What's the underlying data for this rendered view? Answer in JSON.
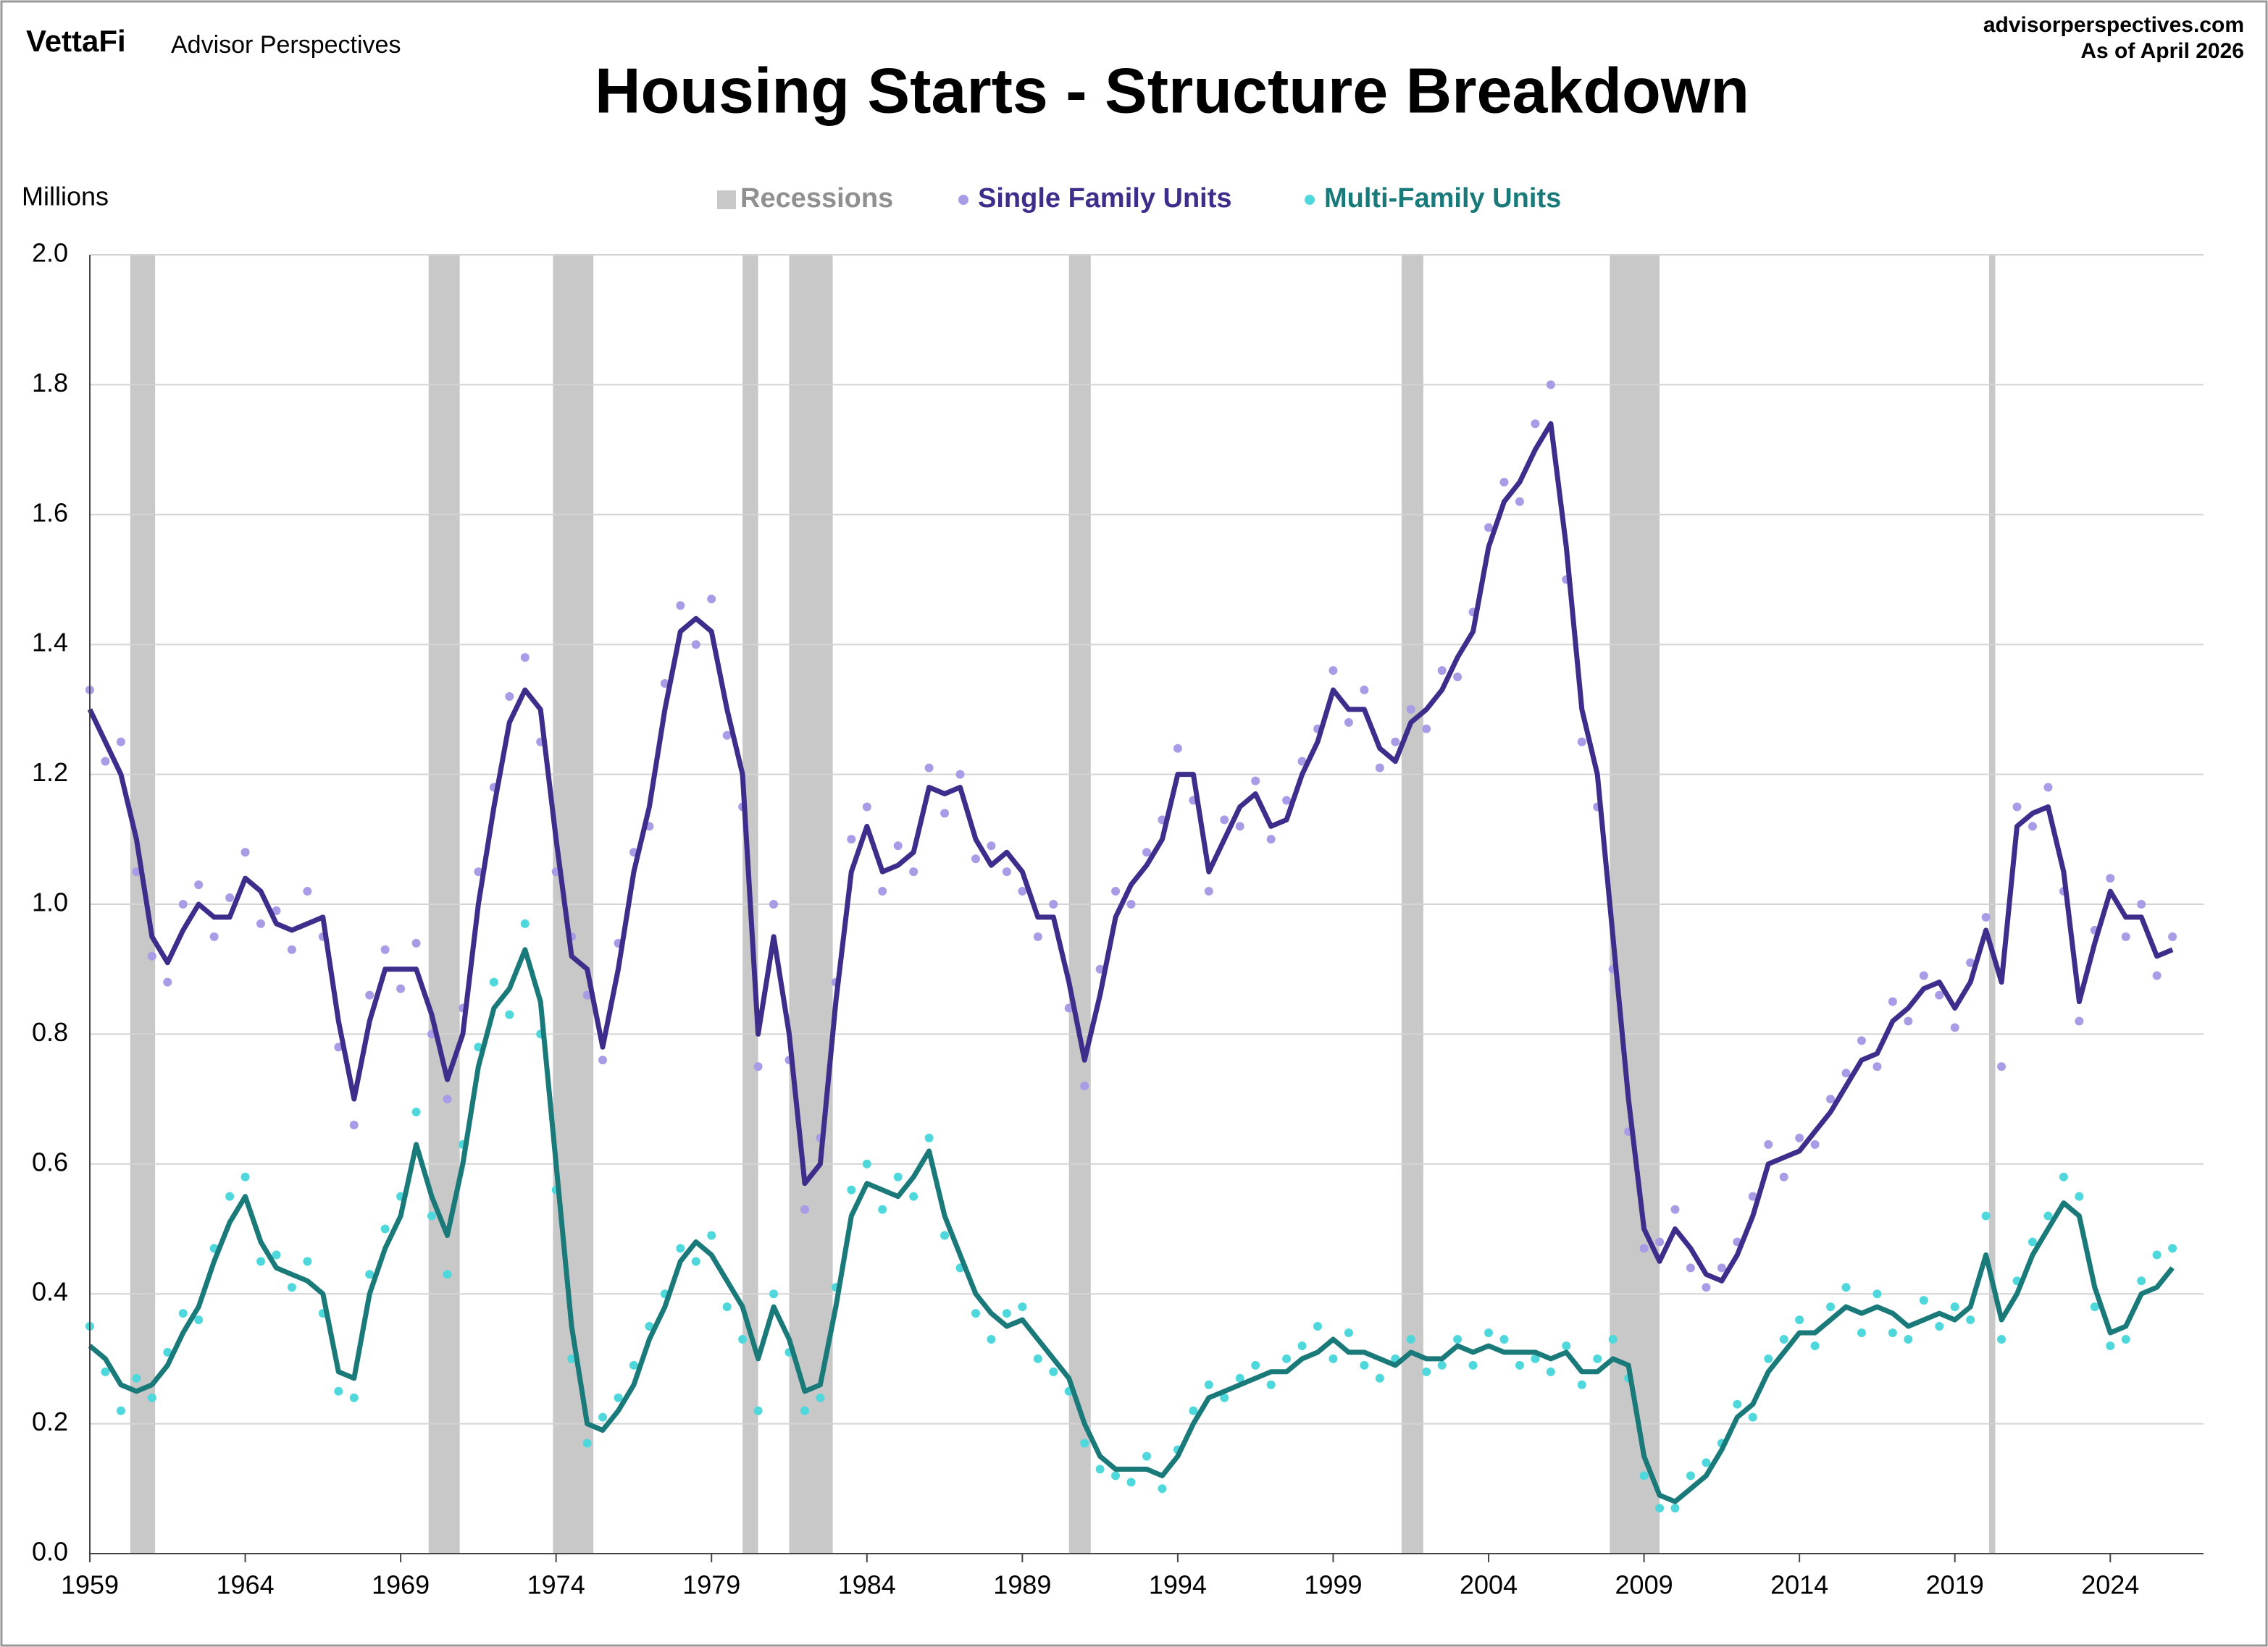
{
  "chart_data": {
    "type": "line",
    "title": "Housing Starts - Structure Breakdown",
    "logo": "VettaFi",
    "brand": "Advisor Perspectives",
    "source": "advisorperspectives.com",
    "date_note": "As of April 2026",
    "y_label": "Millions",
    "xlim": [
      1959,
      2027
    ],
    "xticks": [
      1959,
      1964,
      1969,
      1974,
      1979,
      1984,
      1989,
      1994,
      1999,
      2004,
      2009,
      2014,
      2019,
      2024
    ],
    "ylim": [
      0,
      2
    ],
    "yticks": [
      {
        "value": 0,
        "label": "0.0"
      },
      0.2,
      0.4,
      0.6,
      0.8,
      {
        "value": 1,
        "label": "1.0"
      },
      1.2,
      1.4,
      1.6,
      1.8,
      {
        "value": 2,
        "label": "2.0"
      }
    ],
    "grid": true,
    "recessions": {
      "name": "Recessions",
      "color": "#c8c8c8",
      "ranges": [
        [
          1960.3,
          1961.1
        ],
        [
          1969.9,
          1970.9
        ],
        [
          1973.9,
          1975.2
        ],
        [
          1980.0,
          1980.5
        ],
        [
          1981.5,
          1982.9
        ],
        [
          1990.5,
          1991.2
        ],
        [
          2001.2,
          2001.9
        ],
        [
          2007.9,
          2009.5
        ],
        [
          2020.1,
          2020.3
        ]
      ]
    },
    "x": [
      1959.0,
      1959.5,
      1960.0,
      1960.5,
      1961.0,
      1961.5,
      1962.0,
      1962.5,
      1963.0,
      1963.5,
      1964.0,
      1964.5,
      1965.0,
      1965.5,
      1966.0,
      1966.5,
      1967.0,
      1967.5,
      1968.0,
      1968.5,
      1969.0,
      1969.5,
      1970.0,
      1970.5,
      1971.0,
      1971.5,
      1972.0,
      1972.5,
      1973.0,
      1973.5,
      1974.0,
      1974.5,
      1975.0,
      1975.5,
      1976.0,
      1976.5,
      1977.0,
      1977.5,
      1978.0,
      1978.5,
      1979.0,
      1979.5,
      1980.0,
      1980.5,
      1981.0,
      1981.5,
      1982.0,
      1982.5,
      1983.0,
      1983.5,
      1984.0,
      1984.5,
      1985.0,
      1985.5,
      1986.0,
      1986.5,
      1987.0,
      1987.5,
      1988.0,
      1988.5,
      1989.0,
      1989.5,
      1990.0,
      1990.5,
      1991.0,
      1991.5,
      1992.0,
      1992.5,
      1993.0,
      1993.5,
      1994.0,
      1994.5,
      1995.0,
      1995.5,
      1996.0,
      1996.5,
      1997.0,
      1997.5,
      1998.0,
      1998.5,
      1999.0,
      1999.5,
      2000.0,
      2000.5,
      2001.0,
      2001.5,
      2002.0,
      2002.5,
      2003.0,
      2003.5,
      2004.0,
      2004.5,
      2005.0,
      2005.5,
      2006.0,
      2006.5,
      2007.0,
      2007.5,
      2008.0,
      2008.5,
      2009.0,
      2009.5,
      2010.0,
      2010.5,
      2011.0,
      2011.5,
      2012.0,
      2012.5,
      2013.0,
      2013.5,
      2014.0,
      2014.5,
      2015.0,
      2015.5,
      2016.0,
      2016.5,
      2017.0,
      2017.5,
      2018.0,
      2018.5,
      2019.0,
      2019.5,
      2020.0,
      2020.5,
      2021.0,
      2021.5,
      2022.0,
      2022.5,
      2023.0,
      2023.5,
      2024.0,
      2024.5,
      2025.0,
      2025.5,
      2026.0
    ],
    "series": [
      {
        "name": "Single Family Units",
        "color": "#3f2d8c",
        "dot_color": "#a99be6",
        "values": [
          1.33,
          1.22,
          1.25,
          1.05,
          0.92,
          0.88,
          1.0,
          1.03,
          0.95,
          1.01,
          1.08,
          0.97,
          0.99,
          0.93,
          1.02,
          0.95,
          0.78,
          0.66,
          0.86,
          0.93,
          0.87,
          0.94,
          0.8,
          0.7,
          0.84,
          1.05,
          1.18,
          1.32,
          1.38,
          1.25,
          1.05,
          0.95,
          0.86,
          0.76,
          0.94,
          1.08,
          1.12,
          1.34,
          1.46,
          1.4,
          1.47,
          1.26,
          1.15,
          0.75,
          1.0,
          0.76,
          0.53,
          0.64,
          0.88,
          1.1,
          1.15,
          1.02,
          1.09,
          1.05,
          1.21,
          1.14,
          1.2,
          1.07,
          1.09,
          1.05,
          1.02,
          0.95,
          1.0,
          0.84,
          0.72,
          0.9,
          1.02,
          1.0,
          1.08,
          1.13,
          1.24,
          1.16,
          1.02,
          1.13,
          1.12,
          1.19,
          1.1,
          1.16,
          1.22,
          1.27,
          1.36,
          1.28,
          1.33,
          1.21,
          1.25,
          1.3,
          1.27,
          1.36,
          1.35,
          1.45,
          1.58,
          1.65,
          1.62,
          1.74,
          1.8,
          1.5,
          1.25,
          1.15,
          0.9,
          0.65,
          0.47,
          0.48,
          0.53,
          0.44,
          0.41,
          0.44,
          0.48,
          0.55,
          0.63,
          0.58,
          0.64,
          0.63,
          0.7,
          0.74,
          0.79,
          0.75,
          0.85,
          0.82,
          0.89,
          0.86,
          0.81,
          0.91,
          0.98,
          0.75,
          1.15,
          1.12,
          1.18,
          1.02,
          0.82,
          0.96,
          1.04,
          0.95,
          1.0,
          0.89,
          0.95
        ],
        "trend": [
          1.3,
          1.25,
          1.2,
          1.1,
          0.95,
          0.91,
          0.96,
          1.0,
          0.98,
          0.98,
          1.04,
          1.02,
          0.97,
          0.96,
          0.97,
          0.98,
          0.82,
          0.7,
          0.82,
          0.9,
          0.9,
          0.9,
          0.83,
          0.73,
          0.8,
          1.0,
          1.15,
          1.28,
          1.33,
          1.3,
          1.1,
          0.92,
          0.9,
          0.78,
          0.9,
          1.05,
          1.15,
          1.3,
          1.42,
          1.44,
          1.42,
          1.3,
          1.2,
          0.8,
          0.95,
          0.8,
          0.57,
          0.6,
          0.85,
          1.05,
          1.12,
          1.05,
          1.06,
          1.08,
          1.18,
          1.17,
          1.18,
          1.1,
          1.06,
          1.08,
          1.05,
          0.98,
          0.98,
          0.88,
          0.76,
          0.86,
          0.98,
          1.03,
          1.06,
          1.1,
          1.2,
          1.2,
          1.05,
          1.1,
          1.15,
          1.17,
          1.12,
          1.13,
          1.2,
          1.25,
          1.33,
          1.3,
          1.3,
          1.24,
          1.22,
          1.28,
          1.3,
          1.33,
          1.38,
          1.42,
          1.55,
          1.62,
          1.65,
          1.7,
          1.74,
          1.55,
          1.3,
          1.2,
          0.95,
          0.7,
          0.5,
          0.45,
          0.5,
          0.47,
          0.43,
          0.42,
          0.46,
          0.52,
          0.6,
          0.61,
          0.62,
          0.65,
          0.68,
          0.72,
          0.76,
          0.77,
          0.82,
          0.84,
          0.87,
          0.88,
          0.84,
          0.88,
          0.96,
          0.88,
          1.12,
          1.14,
          1.15,
          1.05,
          0.85,
          0.94,
          1.02,
          0.98,
          0.98,
          0.92,
          0.93
        ]
      },
      {
        "name": "Multi-Family Units",
        "color": "#1a7a7a",
        "dot_color": "#4fd8dc",
        "values": [
          0.35,
          0.28,
          0.22,
          0.27,
          0.24,
          0.31,
          0.37,
          0.36,
          0.47,
          0.55,
          0.58,
          0.45,
          0.46,
          0.41,
          0.45,
          0.37,
          0.25,
          0.24,
          0.43,
          0.5,
          0.55,
          0.68,
          0.52,
          0.43,
          0.63,
          0.78,
          0.88,
          0.83,
          0.97,
          0.8,
          0.56,
          0.3,
          0.17,
          0.21,
          0.24,
          0.29,
          0.35,
          0.4,
          0.47,
          0.45,
          0.49,
          0.38,
          0.33,
          0.22,
          0.4,
          0.31,
          0.22,
          0.24,
          0.41,
          0.56,
          0.6,
          0.53,
          0.58,
          0.55,
          0.64,
          0.49,
          0.44,
          0.37,
          0.33,
          0.37,
          0.38,
          0.3,
          0.28,
          0.25,
          0.17,
          0.13,
          0.12,
          0.11,
          0.15,
          0.1,
          0.16,
          0.22,
          0.26,
          0.24,
          0.27,
          0.29,
          0.26,
          0.3,
          0.32,
          0.35,
          0.3,
          0.34,
          0.29,
          0.27,
          0.3,
          0.33,
          0.28,
          0.29,
          0.33,
          0.29,
          0.34,
          0.33,
          0.29,
          0.3,
          0.28,
          0.32,
          0.26,
          0.3,
          0.33,
          0.27,
          0.12,
          0.07,
          0.07,
          0.12,
          0.14,
          0.17,
          0.23,
          0.21,
          0.3,
          0.33,
          0.36,
          0.32,
          0.38,
          0.41,
          0.34,
          0.4,
          0.34,
          0.33,
          0.39,
          0.35,
          0.38,
          0.36,
          0.52,
          0.33,
          0.42,
          0.48,
          0.52,
          0.58,
          0.55,
          0.38,
          0.32,
          0.33,
          0.42,
          0.46,
          0.47
        ],
        "trend": [
          0.32,
          0.3,
          0.26,
          0.25,
          0.26,
          0.29,
          0.34,
          0.38,
          0.45,
          0.51,
          0.55,
          0.48,
          0.44,
          0.43,
          0.42,
          0.4,
          0.28,
          0.27,
          0.4,
          0.47,
          0.52,
          0.63,
          0.55,
          0.49,
          0.6,
          0.75,
          0.84,
          0.87,
          0.93,
          0.85,
          0.6,
          0.35,
          0.2,
          0.19,
          0.22,
          0.26,
          0.33,
          0.38,
          0.45,
          0.48,
          0.46,
          0.42,
          0.38,
          0.3,
          0.38,
          0.33,
          0.25,
          0.26,
          0.38,
          0.52,
          0.57,
          0.56,
          0.55,
          0.58,
          0.62,
          0.52,
          0.46,
          0.4,
          0.37,
          0.35,
          0.36,
          0.33,
          0.3,
          0.27,
          0.2,
          0.15,
          0.13,
          0.13,
          0.13,
          0.12,
          0.15,
          0.2,
          0.24,
          0.25,
          0.26,
          0.27,
          0.28,
          0.28,
          0.3,
          0.31,
          0.33,
          0.31,
          0.31,
          0.3,
          0.29,
          0.31,
          0.3,
          0.3,
          0.32,
          0.31,
          0.32,
          0.31,
          0.31,
          0.31,
          0.3,
          0.31,
          0.28,
          0.28,
          0.3,
          0.29,
          0.15,
          0.09,
          0.08,
          0.1,
          0.12,
          0.16,
          0.21,
          0.23,
          0.28,
          0.31,
          0.34,
          0.34,
          0.36,
          0.38,
          0.37,
          0.38,
          0.37,
          0.35,
          0.36,
          0.37,
          0.36,
          0.38,
          0.46,
          0.36,
          0.4,
          0.46,
          0.5,
          0.54,
          0.52,
          0.41,
          0.34,
          0.35,
          0.4,
          0.41,
          0.44
        ]
      }
    ]
  }
}
